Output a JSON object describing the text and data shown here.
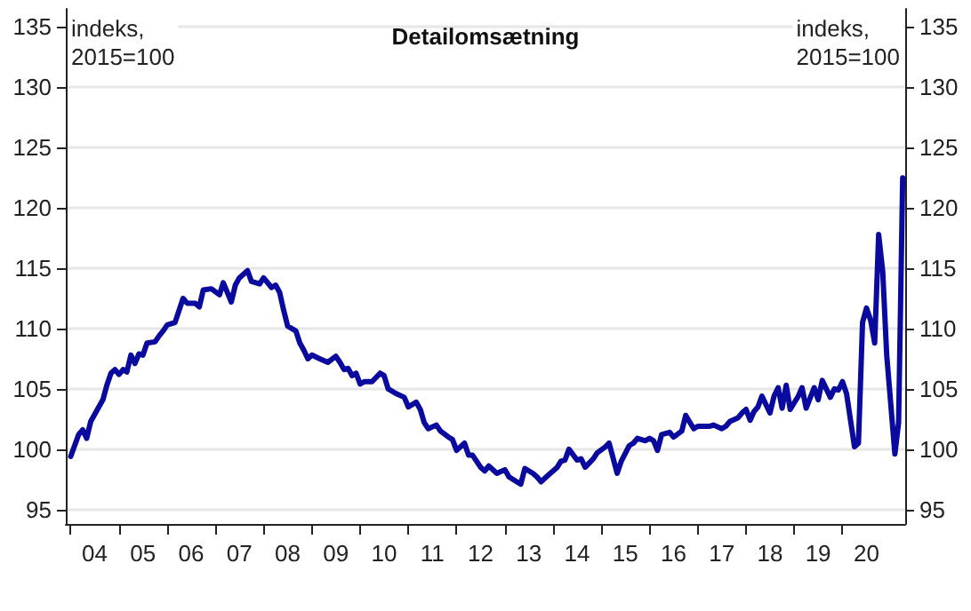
{
  "chart_data": {
    "type": "line",
    "title": "Detailomsætning",
    "ylabel": "indeks,\n2015=100",
    "y2label": "indeks,\n2015=100",
    "series": [
      {
        "color": "#0a0a9e",
        "x": [
          "2004-01",
          "2004-03",
          "2004-04",
          "2004-05",
          "2004-06",
          "2004-08",
          "2004-09",
          "2004-10",
          "2004-11",
          "2004-12",
          "2005-01",
          "2005-02",
          "2005-03",
          "2005-04",
          "2005-05",
          "2005-06",
          "2005-07",
          "2005-08",
          "2005-10",
          "2005-11",
          "2005-12",
          "2006-01",
          "2006-03",
          "2006-05",
          "2006-06",
          "2006-08",
          "2006-09",
          "2006-10",
          "2006-12",
          "2007-02",
          "2007-03",
          "2007-04",
          "2007-05",
          "2007-06",
          "2007-07",
          "2007-09",
          "2007-10",
          "2007-12",
          "2008-01",
          "2008-03",
          "2008-04",
          "2008-05",
          "2008-06",
          "2008-07",
          "2008-09",
          "2008-10",
          "2008-11",
          "2008-12",
          "2009-01",
          "2009-03",
          "2009-05",
          "2009-07",
          "2009-08",
          "2009-09",
          "2009-10",
          "2009-11",
          "2009-12",
          "2010-01",
          "2010-02",
          "2010-04",
          "2010-06",
          "2010-07",
          "2010-08",
          "2010-10",
          "2010-12",
          "2011-01",
          "2011-03",
          "2011-04",
          "2011-05",
          "2011-06",
          "2011-08",
          "2011-09",
          "2011-11",
          "2011-12",
          "2012-01",
          "2012-03",
          "2012-04",
          "2012-05",
          "2012-07",
          "2012-08",
          "2012-09",
          "2012-11",
          "2013-01",
          "2013-02",
          "2013-04",
          "2013-05",
          "2013-06",
          "2013-08",
          "2013-09",
          "2013-10",
          "2013-12",
          "2014-02",
          "2014-03",
          "2014-04",
          "2014-05",
          "2014-07",
          "2014-08",
          "2014-09",
          "2014-11",
          "2014-12",
          "2015-02",
          "2015-03",
          "2015-05",
          "2015-06",
          "2015-08",
          "2015-09",
          "2015-10",
          "2015-12",
          "2016-01",
          "2016-02",
          "2016-03",
          "2016-04",
          "2016-06",
          "2016-07",
          "2016-09",
          "2016-10",
          "2016-12",
          "2017-01",
          "2017-04",
          "2017-05",
          "2017-07",
          "2017-08",
          "2017-09",
          "2017-11",
          "2017-12",
          "2018-01",
          "2018-02",
          "2018-03",
          "2018-04",
          "2018-05",
          "2018-07",
          "2018-08",
          "2018-09",
          "2018-10",
          "2018-11",
          "2018-12",
          "2019-02",
          "2019-03",
          "2019-04",
          "2019-06",
          "2019-07",
          "2019-08",
          "2019-10",
          "2019-11",
          "2019-12",
          "2020-01",
          "2020-02",
          "2020-04",
          "2020-05",
          "2020-06",
          "2020-07",
          "2020-08",
          "2020-09",
          "2020-10",
          "2020-11",
          "2020-12",
          "2021-02",
          "2021-03",
          "2021-04"
        ],
        "values": [
          99.4,
          101.2,
          101.6,
          100.9,
          102.3,
          103.5,
          104.1,
          105.3,
          106.3,
          106.6,
          106.2,
          106.6,
          106.4,
          107.8,
          107.1,
          107.9,
          107.8,
          108.8,
          108.9,
          109.4,
          109.8,
          110.3,
          110.5,
          112.5,
          112.1,
          112.1,
          111.8,
          113.2,
          113.3,
          112.8,
          113.8,
          113.0,
          112.2,
          113.6,
          114.2,
          114.8,
          113.9,
          113.7,
          114.2,
          113.4,
          113.6,
          113.0,
          111.5,
          110.2,
          109.8,
          108.8,
          108.2,
          107.5,
          107.8,
          107.5,
          107.2,
          107.7,
          107.2,
          106.6,
          106.7,
          106.1,
          106.3,
          105.4,
          105.6,
          105.6,
          106.3,
          106.1,
          105.0,
          104.6,
          104.3,
          103.5,
          103.9,
          103.3,
          102.2,
          101.7,
          102.0,
          101.5,
          101.0,
          100.8,
          99.9,
          100.5,
          99.5,
          99.5,
          98.5,
          98.2,
          98.6,
          98.0,
          98.3,
          97.7,
          97.3,
          97.1,
          98.4,
          98.0,
          97.7,
          97.3,
          97.9,
          98.5,
          99.0,
          99.1,
          100.0,
          99.1,
          99.2,
          98.5,
          99.2,
          99.7,
          100.2,
          100.5,
          98.0,
          99.0,
          100.3,
          100.5,
          100.9,
          100.7,
          100.9,
          100.7,
          99.9,
          101.2,
          101.4,
          101.0,
          101.5,
          102.8,
          101.7,
          101.9,
          101.9,
          102.0,
          101.7,
          101.9,
          102.3,
          102.6,
          103.0,
          103.3,
          102.4,
          103.1,
          103.5,
          104.4,
          103.0,
          104.4,
          105.1,
          103.4,
          105.3,
          103.3,
          104.4,
          105.1,
          103.4,
          105.1,
          104.1,
          105.7,
          104.3,
          105.0,
          104.9,
          105.6,
          104.6,
          100.2,
          100.5,
          110.5,
          111.7,
          110.7,
          108.8,
          117.8,
          114.7,
          107.8,
          99.6,
          102.2,
          122.5
        ]
      }
    ],
    "xlim": [
      "2003-11-25",
      "2021-04-20"
    ],
    "xticks": [
      {
        "value": "2004",
        "label": null
      },
      {
        "value": "2004-07",
        "label": "04"
      },
      {
        "value": "2005",
        "label": null
      },
      {
        "value": "2005-07",
        "label": "05"
      },
      {
        "value": "2006",
        "label": null
      },
      {
        "value": "2006-07",
        "label": "06"
      },
      {
        "value": "2007",
        "label": null
      },
      {
        "value": "2007-07",
        "label": "07"
      },
      {
        "value": "2008",
        "label": null
      },
      {
        "value": "2008-07",
        "label": "08"
      },
      {
        "value": "2009",
        "label": null
      },
      {
        "value": "2009-07",
        "label": "09"
      },
      {
        "value": "2010",
        "label": null
      },
      {
        "value": "2010-07",
        "label": "10"
      },
      {
        "value": "2011",
        "label": null
      },
      {
        "value": "2011-07",
        "label": "11"
      },
      {
        "value": "2012",
        "label": null
      },
      {
        "value": "2012-07",
        "label": "12"
      },
      {
        "value": "2013",
        "label": null
      },
      {
        "value": "2013-07",
        "label": "13"
      },
      {
        "value": "2014",
        "label": null
      },
      {
        "value": "2014-07",
        "label": "14"
      },
      {
        "value": "2015",
        "label": null
      },
      {
        "value": "2015-07",
        "label": "15"
      },
      {
        "value": "2016",
        "label": null
      },
      {
        "value": "2016-07",
        "label": "16"
      },
      {
        "value": "2017",
        "label": null
      },
      {
        "value": "2017-07",
        "label": "17"
      },
      {
        "value": "2018",
        "label": null
      },
      {
        "value": "2018-07",
        "label": "18"
      },
      {
        "value": "2019",
        "label": null
      },
      {
        "value": "2019-07",
        "label": "19"
      },
      {
        "value": "2020",
        "label": null
      },
      {
        "value": "2020-07",
        "label": "20"
      }
    ],
    "ylim": [
      93.8,
      136.5
    ],
    "yticks": [
      95,
      100,
      105,
      110,
      115,
      120,
      125,
      130,
      135
    ],
    "y2lim": [
      93.8,
      136.5
    ],
    "y2ticks": [
      95,
      100,
      105,
      110,
      115,
      120,
      125,
      130,
      135
    ],
    "grid": "y",
    "marker": "none",
    "line_style": "solid"
  }
}
